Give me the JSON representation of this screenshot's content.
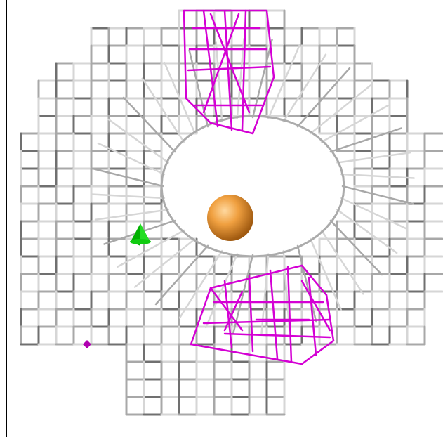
{
  "scene": {
    "background": "#ffffff",
    "mesh_colors": {
      "grid_light": "#d6d6d6",
      "grid_mid": "#a8a8a8",
      "grid_dark": "#707070",
      "density_cage": "#d400d4",
      "ion": "#f0a040",
      "marker": "#00dd00",
      "small_marker": "#b000b0"
    },
    "objects": [
      {
        "kind": "wireframe-grid",
        "icon": "mesh-grid-icon"
      },
      {
        "kind": "density-cage-top",
        "icon": "magenta-cage-icon"
      },
      {
        "kind": "density-cage-bottom",
        "icon": "magenta-cage-icon"
      },
      {
        "kind": "ion-sphere",
        "icon": "orange-sphere-icon"
      },
      {
        "kind": "green-marker",
        "icon": "green-cone-icon"
      },
      {
        "kind": "small-magenta-marker",
        "icon": "magenta-dot-icon"
      }
    ]
  }
}
